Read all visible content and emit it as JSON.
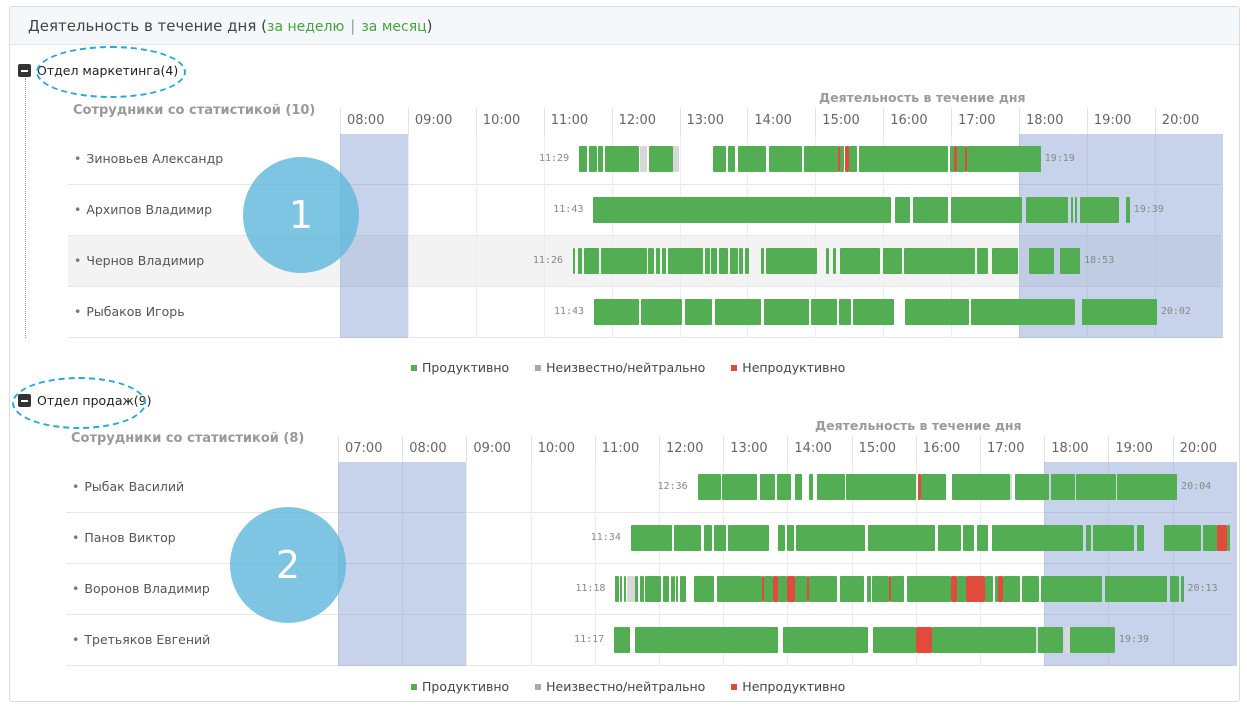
{
  "panel": {
    "title": "Деятельность в течение дня",
    "paren_open": "(",
    "week_link": "за неделю",
    "separator": "|",
    "month_link": "за месяц",
    "paren_close": ")"
  },
  "sections": [
    {
      "dept_name": "Отдел маркетинга(4)",
      "employees_header": "Сотрудники со статистикой (10)",
      "activity_header": "Деятельность в течение дня",
      "hours": [
        "08:00",
        "09:00",
        "10:00",
        "11:00",
        "12:00",
        "13:00",
        "14:00",
        "15:00",
        "16:00",
        "17:00",
        "18:00",
        "19:00",
        "20:00"
      ],
      "start_hour": 8,
      "shaded": [
        [
          8,
          9
        ],
        [
          18,
          21
        ]
      ],
      "circle": "1",
      "rows": [
        {
          "name": "Зиновьев Александр",
          "start": "11:29",
          "end": "19:19",
          "segments": [
            [
              11.52,
              11.64,
              "p"
            ],
            [
              11.67,
              11.78,
              "p"
            ],
            [
              11.8,
              11.87,
              "p"
            ],
            [
              11.9,
              12.4,
              "p"
            ],
            [
              12.42,
              12.52,
              "n"
            ],
            [
              12.55,
              12.9,
              "p"
            ],
            [
              12.9,
              13.0,
              "n"
            ],
            [
              13.5,
              13.68,
              "p"
            ],
            [
              13.72,
              13.82,
              "p"
            ],
            [
              13.86,
              14.28,
              "p"
            ],
            [
              14.32,
              14.8,
              "p"
            ],
            [
              14.84,
              15.33,
              "p"
            ],
            [
              15.33,
              15.37,
              "u"
            ],
            [
              15.37,
              15.42,
              "p"
            ],
            [
              15.44,
              15.5,
              "u"
            ],
            [
              15.5,
              15.62,
              "p"
            ],
            [
              15.64,
              16.95,
              "p"
            ],
            [
              16.98,
              17.05,
              "p"
            ],
            [
              17.05,
              17.09,
              "u"
            ],
            [
              17.09,
              17.2,
              "p"
            ],
            [
              17.2,
              17.24,
              "u"
            ],
            [
              17.24,
              18.32,
              "p"
            ]
          ]
        },
        {
          "name": "Архипов Владимир",
          "start": "11:43",
          "end": "19:39",
          "segments": [
            [
              11.73,
              16.12,
              "p"
            ],
            [
              16.18,
              16.4,
              "p"
            ],
            [
              16.44,
              16.96,
              "p"
            ],
            [
              17.0,
              18.05,
              "p"
            ],
            [
              18.1,
              18.72,
              "p"
            ],
            [
              18.77,
              18.8,
              "p"
            ],
            [
              18.83,
              18.86,
              "p"
            ],
            [
              18.9,
              19.48,
              "p"
            ],
            [
              19.58,
              19.63,
              "p"
            ]
          ]
        },
        {
          "name": "Чернов Владимир",
          "start": "11:26",
          "end": "18:53",
          "segments": [
            [
              11.43,
              11.46,
              "p"
            ],
            [
              11.5,
              11.57,
              "p"
            ],
            [
              11.6,
              11.81,
              "p"
            ],
            [
              11.84,
              12.52,
              "p"
            ],
            [
              12.54,
              12.63,
              "p"
            ],
            [
              12.65,
              12.72,
              "p"
            ],
            [
              12.74,
              12.8,
              "p"
            ],
            [
              12.83,
              13.35,
              "p"
            ],
            [
              13.38,
              13.45,
              "p"
            ],
            [
              13.47,
              13.55,
              "p"
            ],
            [
              13.58,
              13.71,
              "p"
            ],
            [
              13.74,
              13.86,
              "p"
            ],
            [
              13.88,
              13.93,
              "p"
            ],
            [
              13.96,
              14.02,
              "p"
            ],
            [
              14.2,
              14.24,
              "p"
            ],
            [
              14.27,
              15.02,
              "p"
            ],
            [
              15.16,
              15.2,
              "p"
            ],
            [
              15.26,
              15.3,
              "p"
            ],
            [
              15.36,
              15.96,
              "p"
            ],
            [
              16.0,
              16.27,
              "p"
            ],
            [
              16.3,
              17.35,
              "p"
            ],
            [
              17.38,
              17.55,
              "p"
            ],
            [
              17.6,
              17.98,
              "p"
            ],
            [
              18.15,
              18.52,
              "p"
            ],
            [
              18.6,
              18.9,
              "p"
            ]
          ]
        },
        {
          "name": "Рыбаков Игорь",
          "start": "11:43",
          "end": "20:02",
          "segments": [
            [
              11.74,
              12.4,
              "p"
            ],
            [
              12.44,
              13.04,
              "p"
            ],
            [
              13.08,
              13.48,
              "p"
            ],
            [
              13.52,
              14.2,
              "p"
            ],
            [
              14.24,
              14.9,
              "p"
            ],
            [
              14.94,
              15.32,
              "p"
            ],
            [
              15.35,
              15.52,
              "p"
            ],
            [
              15.56,
              16.16,
              "p"
            ],
            [
              16.32,
              17.26,
              "p"
            ],
            [
              17.3,
              18.82,
              "p"
            ],
            [
              18.93,
              20.03,
              "p"
            ]
          ]
        }
      ]
    },
    {
      "dept_name": "Отдел продаж(9)",
      "employees_header": "Сотрудники со статистикой (8)",
      "activity_header": "Деятельность в течение дня",
      "hours": [
        "07:00",
        "08:00",
        "09:00",
        "10:00",
        "11:00",
        "12:00",
        "13:00",
        "14:00",
        "15:00",
        "16:00",
        "17:00",
        "18:00",
        "19:00",
        "20:00"
      ],
      "start_hour": 7,
      "shaded": [
        [
          7,
          9
        ],
        [
          18,
          21
        ]
      ],
      "circle": "2",
      "rows": [
        {
          "name": "Рыбак Василий",
          "start": "12:36",
          "end": "20:04",
          "segments": [
            [
              12.6,
              12.96,
              "p"
            ],
            [
              12.98,
              13.52,
              "p"
            ],
            [
              13.58,
              13.8,
              "p"
            ],
            [
              13.84,
              14.06,
              "p"
            ],
            [
              14.12,
              14.22,
              "p"
            ],
            [
              14.34,
              14.4,
              "p"
            ],
            [
              14.46,
              14.9,
              "p"
            ],
            [
              14.92,
              16.0,
              "p"
            ],
            [
              16.04,
              16.08,
              "u"
            ],
            [
              16.08,
              16.47,
              "p"
            ],
            [
              16.56,
              17.46,
              "p"
            ],
            [
              17.46,
              17.5,
              "n"
            ],
            [
              17.55,
              18.08,
              "p"
            ],
            [
              18.1,
              18.48,
              "p"
            ],
            [
              18.5,
              19.12,
              "p"
            ],
            [
              19.12,
              19.14,
              "n"
            ],
            [
              19.14,
              20.07,
              "p"
            ]
          ]
        },
        {
          "name": "Панов Виктор",
          "start": "11:34",
          "end": "",
          "segments": [
            [
              11.56,
              12.2,
              "p"
            ],
            [
              12.24,
              12.66,
              "p"
            ],
            [
              12.7,
              12.82,
              "p"
            ],
            [
              12.86,
              13.04,
              "p"
            ],
            [
              13.08,
              13.72,
              "p"
            ],
            [
              13.86,
              13.96,
              "p"
            ],
            [
              14.0,
              14.1,
              "p"
            ],
            [
              14.14,
              15.21,
              "p"
            ],
            [
              15.26,
              16.3,
              "p"
            ],
            [
              16.34,
              16.7,
              "p"
            ],
            [
              16.74,
              16.91,
              "p"
            ],
            [
              16.95,
              17.12,
              "p"
            ],
            [
              17.18,
              18.61,
              "p"
            ],
            [
              18.65,
              18.73,
              "p"
            ],
            [
              18.76,
              19.4,
              "p"
            ],
            [
              19.45,
              19.55,
              "p"
            ],
            [
              19.87,
              20.44,
              "p"
            ],
            [
              20.48,
              20.69,
              "p"
            ],
            [
              20.69,
              20.85,
              "u"
            ],
            [
              20.85,
              20.9,
              "p"
            ]
          ]
        },
        {
          "name": "Воронов Владимир",
          "start": "11:18",
          "end": "20:13",
          "segments": [
            [
              11.32,
              11.37,
              "p"
            ],
            [
              11.4,
              11.43,
              "p"
            ],
            [
              11.45,
              11.49,
              "p"
            ],
            [
              11.5,
              11.62,
              "n"
            ],
            [
              11.62,
              11.67,
              "p"
            ],
            [
              11.7,
              11.76,
              "p"
            ],
            [
              11.78,
              12.03,
              "p"
            ],
            [
              12.06,
              12.15,
              "p"
            ],
            [
              12.18,
              12.2,
              "p"
            ],
            [
              12.22,
              12.24,
              "p"
            ],
            [
              12.26,
              12.29,
              "p"
            ],
            [
              12.32,
              12.42,
              "p"
            ],
            [
              12.55,
              12.85,
              "p"
            ],
            [
              12.9,
              13.6,
              "p"
            ],
            [
              13.6,
              13.64,
              "u"
            ],
            [
              13.64,
              13.78,
              "p"
            ],
            [
              13.78,
              13.86,
              "u"
            ],
            [
              13.86,
              14.0,
              "p"
            ],
            [
              14.0,
              14.12,
              "u"
            ],
            [
              14.12,
              14.3,
              "p"
            ],
            [
              14.3,
              14.34,
              "u"
            ],
            [
              14.34,
              14.78,
              "p"
            ],
            [
              14.82,
              15.2,
              "p"
            ],
            [
              15.24,
              15.3,
              "p"
            ],
            [
              15.32,
              15.58,
              "p"
            ],
            [
              15.58,
              15.62,
              "u"
            ],
            [
              15.62,
              15.82,
              "p"
            ],
            [
              15.86,
              16.55,
              "p"
            ],
            [
              16.55,
              16.64,
              "u"
            ],
            [
              16.64,
              16.78,
              "p"
            ],
            [
              16.78,
              17.08,
              "u"
            ],
            [
              17.08,
              17.2,
              "p"
            ],
            [
              17.24,
              17.28,
              "p"
            ],
            [
              17.28,
              17.36,
              "u"
            ],
            [
              17.36,
              17.62,
              "p"
            ],
            [
              17.66,
              17.92,
              "p"
            ],
            [
              17.95,
              18.9,
              "p"
            ],
            [
              18.95,
              19.92,
              "p"
            ],
            [
              19.96,
              20.1,
              "p"
            ],
            [
              20.13,
              20.17,
              "p"
            ]
          ]
        },
        {
          "name": "Третьяков Евгений",
          "start": "11:17",
          "end": "19:39",
          "segments": [
            [
              11.3,
              11.55,
              "p"
            ],
            [
              11.62,
              13.86,
              "p"
            ],
            [
              13.93,
              15.26,
              "p"
            ],
            [
              15.34,
              16.0,
              "p"
            ],
            [
              16.0,
              16.26,
              "u"
            ],
            [
              16.26,
              17.87,
              "p"
            ],
            [
              17.87,
              17.9,
              "n"
            ],
            [
              17.9,
              18.3,
              "p"
            ],
            [
              18.33,
              18.4,
              "n"
            ],
            [
              18.4,
              19.1,
              "p"
            ]
          ]
        }
      ]
    }
  ],
  "legend": {
    "productive": "Продуктивно",
    "neutral": "Неизвестно/нейтрально",
    "unproductive": "Непродуктивно"
  },
  "colors": {
    "productive": "#53ad53",
    "neutral": "#d8d8d8",
    "unproductive": "#e14b3b",
    "shade": "rgba(120,150,205,0.42)",
    "link": "#4aa23f",
    "circle": "rgba(96,184,220,0.82)"
  }
}
